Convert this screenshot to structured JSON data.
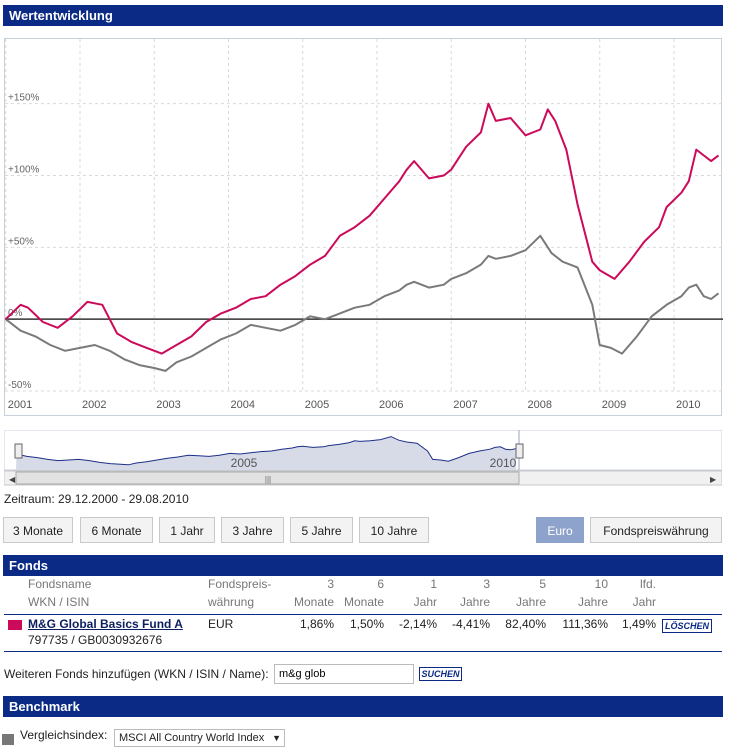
{
  "sections": {
    "wertentwicklung": "Wertentwicklung",
    "fonds": "Fonds",
    "benchmark": "Benchmark"
  },
  "colors": {
    "header_bar": "#0b2a86",
    "fund_series": "#cc0a5a",
    "benchmark_series": "#7a7a7a",
    "active_button": "#8ea3cc"
  },
  "chart_data": {
    "type": "line",
    "title": "",
    "xlabel": "",
    "ylabel": "",
    "x_ticks": [
      "2001",
      "2002",
      "2003",
      "2004",
      "2005",
      "2006",
      "2007",
      "2008",
      "2009",
      "2010"
    ],
    "y_ticks": [
      "+150%",
      "+100%",
      "+50%",
      "0%",
      "-50%"
    ],
    "y_tick_values": [
      150,
      100,
      50,
      0,
      -50
    ],
    "xlim": [
      2000.99,
      2010.66
    ],
    "ylim": [
      -50,
      195
    ],
    "grid": true,
    "series": [
      {
        "name": "M&G Global Basics Fund A",
        "color": "#cc0a5a",
        "x": [
          2001.0,
          2001.2,
          2001.3,
          2001.5,
          2001.7,
          2001.9,
          2002.1,
          2002.3,
          2002.5,
          2002.7,
          2002.9,
          2003.1,
          2003.3,
          2003.5,
          2003.7,
          2003.9,
          2004.1,
          2004.3,
          2004.5,
          2004.7,
          2004.9,
          2005.1,
          2005.3,
          2005.5,
          2005.7,
          2005.9,
          2006.1,
          2006.3,
          2006.4,
          2006.5,
          2006.7,
          2006.9,
          2007.0,
          2007.2,
          2007.4,
          2007.5,
          2007.6,
          2007.8,
          2008.0,
          2008.2,
          2008.3,
          2008.4,
          2008.55,
          2008.7,
          2008.9,
          2009.0,
          2009.2,
          2009.4,
          2009.6,
          2009.8,
          2009.9,
          2010.1,
          2010.2,
          2010.3,
          2010.4,
          2010.5,
          2010.6
        ],
        "y": [
          0,
          10,
          8,
          -2,
          -6,
          2,
          12,
          10,
          -10,
          -16,
          -20,
          -24,
          -18,
          -12,
          -2,
          4,
          8,
          14,
          16,
          24,
          30,
          38,
          44,
          58,
          64,
          72,
          84,
          96,
          104,
          110,
          98,
          100,
          104,
          120,
          130,
          150,
          138,
          140,
          128,
          132,
          146,
          138,
          118,
          80,
          40,
          34,
          28,
          40,
          54,
          64,
          78,
          88,
          96,
          118,
          114,
          110,
          114
        ]
      },
      {
        "name": "MSCI All Country World Index",
        "color": "#7a7a7a",
        "x": [
          2001.0,
          2001.2,
          2001.4,
          2001.6,
          2001.8,
          2002.0,
          2002.2,
          2002.4,
          2002.6,
          2002.8,
          2003.0,
          2003.15,
          2003.3,
          2003.5,
          2003.7,
          2003.9,
          2004.1,
          2004.3,
          2004.5,
          2004.7,
          2004.9,
          2005.1,
          2005.3,
          2005.5,
          2005.7,
          2005.9,
          2006.1,
          2006.3,
          2006.4,
          2006.5,
          2006.7,
          2006.9,
          2007.0,
          2007.2,
          2007.4,
          2007.5,
          2007.6,
          2007.8,
          2008.0,
          2008.2,
          2008.35,
          2008.5,
          2008.7,
          2008.9,
          2009.0,
          2009.15,
          2009.3,
          2009.5,
          2009.7,
          2009.9,
          2010.1,
          2010.2,
          2010.3,
          2010.4,
          2010.5,
          2010.6
        ],
        "y": [
          0,
          -8,
          -12,
          -18,
          -22,
          -20,
          -18,
          -22,
          -28,
          -32,
          -34,
          -36,
          -30,
          -26,
          -20,
          -14,
          -10,
          -4,
          -6,
          -8,
          -4,
          2,
          0,
          4,
          8,
          10,
          16,
          20,
          24,
          26,
          22,
          24,
          28,
          32,
          38,
          44,
          42,
          44,
          48,
          58,
          46,
          40,
          36,
          10,
          -18,
          -20,
          -24,
          -12,
          2,
          10,
          16,
          22,
          24,
          16,
          14,
          18
        ]
      }
    ]
  },
  "navigator": {
    "labels": [
      "2005",
      "2010"
    ],
    "scroll_symbol": "|||",
    "left_arrow": "◀",
    "right_arrow": "▶"
  },
  "zeitraum": "Zeitraum: 29.12.2000 - 29.08.2010",
  "range_buttons": [
    "3 Monate",
    "6 Monate",
    "1 Jahr",
    "3 Jahre",
    "5 Jahre",
    "10 Jahre"
  ],
  "currency_buttons": {
    "euro": "Euro",
    "fund_currency": "Fondspreiswährung"
  },
  "fonds_table": {
    "headers_line1": [
      "Fondsname",
      "Fondspreis-",
      "3",
      "6",
      "1",
      "3",
      "5",
      "10",
      "lfd."
    ],
    "headers_line2": [
      "WKN / ISIN",
      "währung",
      "Monate",
      "Monate",
      "Jahr",
      "Jahre",
      "Jahre",
      "Jahre",
      "Jahr"
    ],
    "row": {
      "name": "M&G Global Basics Fund A",
      "wkn_isin": "797735 / GB0030932676",
      "currency": "EUR",
      "values": [
        "1,86%",
        "1,50%",
        "-2,14%",
        "-4,41%",
        "82,40%",
        "111,36%",
        "1,49%"
      ],
      "delete_label": "LÖSCHEN"
    }
  },
  "add_fund": {
    "label": "Weiteren Fonds hinzufügen (WKN / ISIN / Name):",
    "value": "m&g glob",
    "search_label": "SUCHEN"
  },
  "benchmark": {
    "label": "Vergleichsindex:",
    "selected": "MSCI All Country World Index",
    "arrow": "▼"
  }
}
